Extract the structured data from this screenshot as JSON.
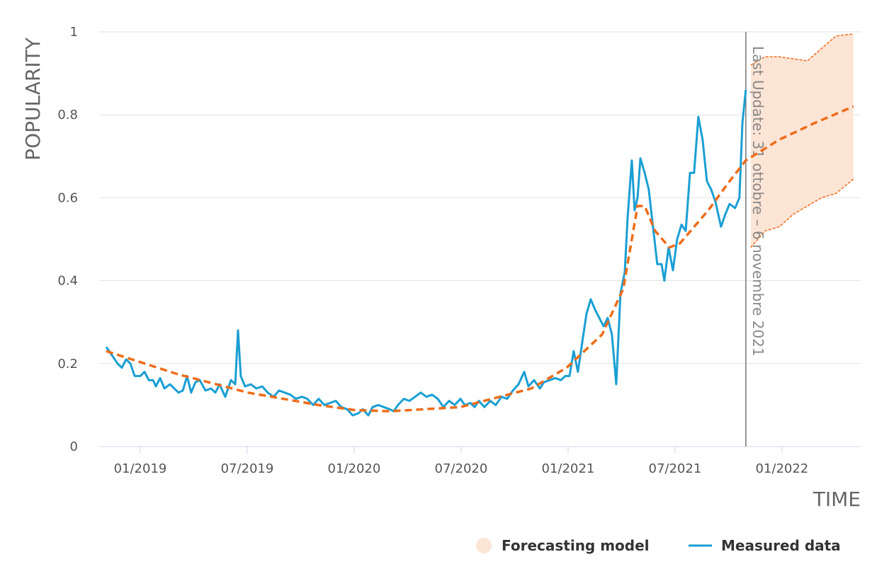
{
  "chart_data": {
    "type": "line",
    "xlabel": "TIME",
    "ylabel": "POPULARITY",
    "xlim": [
      2018.808,
      2022.368
    ],
    "ylim": [
      0,
      1
    ],
    "xticks": [
      {
        "value": 2019.0,
        "label": "01/2019"
      },
      {
        "value": 2019.5,
        "label": "07/2019"
      },
      {
        "value": 2020.0,
        "label": "01/2020"
      },
      {
        "value": 2020.5,
        "label": "07/2020"
      },
      {
        "value": 2021.0,
        "label": "01/2021"
      },
      {
        "value": 2021.5,
        "label": "07/2021"
      },
      {
        "value": 2022.0,
        "label": "01/2022"
      }
    ],
    "yticks": [
      0,
      0.2,
      0.4,
      0.6,
      0.8,
      1
    ],
    "grid": true,
    "legend": "bottom-right",
    "band": {
      "name": "Forecasting model",
      "color": "#fde5d6",
      "edge_color": "#ef6c1a",
      "x": [
        2021.854,
        2021.921,
        2021.987,
        2022.053,
        2022.119,
        2022.185,
        2022.252,
        2022.334
      ],
      "values": [
        0.92,
        0.94,
        0.94,
        0.935,
        0.93,
        0.96,
        0.99,
        0.995
      ],
      "lower": [
        0.48,
        0.52,
        0.53,
        0.56,
        0.58,
        0.6,
        0.61,
        0.645
      ]
    },
    "trend": {
      "color": "#ef6c1a",
      "style": "dashed",
      "x": [
        2018.841,
        2019.172,
        2019.503,
        2019.834,
        2020.0,
        2020.166,
        2020.497,
        2020.828,
        2020.993,
        2021.159,
        2021.258,
        2021.325,
        2021.358,
        2021.407,
        2021.474,
        2021.523,
        2021.656,
        2021.755,
        2021.831,
        2021.987,
        2022.152,
        2022.334
      ],
      "values": [
        0.23,
        0.175,
        0.13,
        0.1,
        0.088,
        0.085,
        0.095,
        0.14,
        0.19,
        0.27,
        0.38,
        0.58,
        0.58,
        0.52,
        0.48,
        0.49,
        0.57,
        0.64,
        0.69,
        0.74,
        0.78,
        0.82
      ]
    },
    "series": [
      {
        "name": "Measured data",
        "color": "#1a9fd4",
        "x": [
          2018.841,
          2018.868,
          2018.894,
          2018.914,
          2018.934,
          2018.954,
          2018.974,
          2019.0,
          2019.02,
          2019.04,
          2019.06,
          2019.073,
          2019.093,
          2019.113,
          2019.139,
          2019.159,
          2019.179,
          2019.199,
          2019.219,
          2019.238,
          2019.258,
          2019.278,
          2019.305,
          2019.331,
          2019.351,
          2019.371,
          2019.397,
          2019.424,
          2019.444,
          2019.457,
          2019.47,
          2019.49,
          2019.517,
          2019.543,
          2019.57,
          2019.596,
          2019.623,
          2019.649,
          2019.675,
          2019.702,
          2019.728,
          2019.755,
          2019.781,
          2019.808,
          2019.834,
          2019.861,
          2019.887,
          2019.914,
          2019.94,
          2019.967,
          2019.993,
          2020.02,
          2020.04,
          2020.066,
          2020.086,
          2020.113,
          2020.139,
          2020.166,
          2020.185,
          2020.205,
          2020.232,
          2020.258,
          2020.285,
          2020.311,
          2020.338,
          2020.364,
          2020.391,
          2020.417,
          2020.444,
          2020.47,
          2020.497,
          2020.517,
          2020.543,
          2020.563,
          2020.583,
          2020.609,
          2020.636,
          2020.662,
          2020.689,
          2020.715,
          2020.742,
          2020.768,
          2020.795,
          2020.815,
          2020.841,
          2020.868,
          2020.887,
          2020.914,
          2020.94,
          2020.967,
          2020.987,
          2021.007,
          2021.026,
          2021.046,
          2021.066,
          2021.086,
          2021.106,
          2021.126,
          2021.146,
          2021.166,
          2021.185,
          2021.205,
          2021.225,
          2021.245,
          2021.265,
          2021.278,
          2021.298,
          2021.311,
          2021.325,
          2021.338,
          2021.358,
          2021.377,
          2021.397,
          2021.417,
          2021.437,
          2021.45,
          2021.47,
          2021.49,
          2021.51,
          2021.53,
          2021.55,
          2021.57,
          2021.589,
          2021.609,
          2021.629,
          2021.649,
          2021.669,
          2021.689,
          2021.715,
          2021.735,
          2021.755,
          2021.781,
          2021.801,
          2021.815,
          2021.831
        ],
        "values": [
          0.24,
          0.22,
          0.2,
          0.19,
          0.21,
          0.2,
          0.17,
          0.17,
          0.18,
          0.16,
          0.16,
          0.145,
          0.165,
          0.14,
          0.15,
          0.14,
          0.13,
          0.135,
          0.17,
          0.13,
          0.155,
          0.16,
          0.135,
          0.14,
          0.13,
          0.15,
          0.12,
          0.16,
          0.15,
          0.28,
          0.17,
          0.145,
          0.15,
          0.14,
          0.145,
          0.13,
          0.12,
          0.135,
          0.13,
          0.125,
          0.115,
          0.12,
          0.115,
          0.1,
          0.115,
          0.1,
          0.105,
          0.11,
          0.095,
          0.09,
          0.075,
          0.08,
          0.09,
          0.075,
          0.095,
          0.1,
          0.095,
          0.09,
          0.085,
          0.1,
          0.115,
          0.11,
          0.12,
          0.13,
          0.12,
          0.125,
          0.115,
          0.095,
          0.11,
          0.1,
          0.115,
          0.1,
          0.105,
          0.095,
          0.11,
          0.095,
          0.11,
          0.1,
          0.12,
          0.115,
          0.135,
          0.15,
          0.18,
          0.145,
          0.16,
          0.14,
          0.155,
          0.16,
          0.165,
          0.16,
          0.17,
          0.17,
          0.23,
          0.18,
          0.25,
          0.32,
          0.355,
          0.33,
          0.31,
          0.29,
          0.31,
          0.27,
          0.15,
          0.37,
          0.42,
          0.55,
          0.69,
          0.57,
          0.6,
          0.695,
          0.66,
          0.62,
          0.53,
          0.44,
          0.44,
          0.4,
          0.48,
          0.425,
          0.5,
          0.535,
          0.52,
          0.66,
          0.66,
          0.795,
          0.74,
          0.64,
          0.62,
          0.59,
          0.53,
          0.56,
          0.585,
          0.575,
          0.6,
          0.78,
          0.86
        ]
      }
    ],
    "annotation": {
      "x": 2021.831,
      "text": "Last Update: 31 ottobre – 6 novembre 2021",
      "color": "#888888"
    }
  }
}
